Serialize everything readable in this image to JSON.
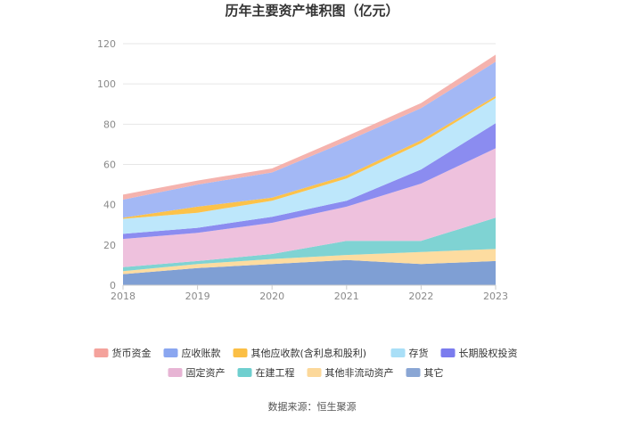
{
  "chart_data": {
    "type": "area",
    "stacked": true,
    "title": "历年主要资产堆积图（亿元）",
    "source": "数据来源：恒生聚源",
    "xlabel": "",
    "ylabel": "",
    "categories": [
      "2018",
      "2019",
      "2020",
      "2021",
      "2022",
      "2023"
    ],
    "ylim": [
      0,
      120
    ],
    "yticks": [
      0,
      20,
      40,
      60,
      80,
      100,
      120
    ],
    "grid": true,
    "legend_position": "bottom",
    "series": [
      {
        "name": "其它",
        "color": "#7f9fd4",
        "values": [
          5.5,
          8.5,
          10.5,
          12.5,
          10.5,
          12.0
        ]
      },
      {
        "name": "其他非流动资产",
        "color": "#fddca0",
        "values": [
          1.5,
          2.0,
          2.5,
          2.5,
          6.0,
          6.0
        ]
      },
      {
        "name": "在建工程",
        "color": "#7fd3d3",
        "values": [
          2.0,
          1.5,
          2.5,
          7.0,
          5.5,
          15.5
        ]
      },
      {
        "name": "固定资产",
        "color": "#eec1dd",
        "values": [
          14.0,
          14.0,
          15.5,
          17.0,
          28.5,
          34.5
        ]
      },
      {
        "name": "长期股权投资",
        "color": "#8b8cf0",
        "values": [
          2.5,
          2.5,
          3.0,
          3.0,
          7.0,
          12.5
        ]
      },
      {
        "name": "存货",
        "color": "#bde7fb",
        "values": [
          7.5,
          7.5,
          8.0,
          11.0,
          13.0,
          12.5
        ]
      },
      {
        "name": "其他应收款(含利息和股利)",
        "color": "#fcc24a",
        "values": [
          0.5,
          3.0,
          1.5,
          1.5,
          1.5,
          1.0
        ]
      },
      {
        "name": "应收账款",
        "color": "#a3b8f5",
        "values": [
          9.0,
          11.0,
          12.5,
          17.0,
          16.0,
          17.0
        ]
      },
      {
        "name": "货币资金",
        "color": "#f5b3ae",
        "values": [
          2.5,
          2.0,
          2.0,
          2.5,
          2.5,
          3.5
        ]
      }
    ]
  },
  "legend": [
    {
      "name": "货币资金",
      "color": "#f4a29c"
    },
    {
      "name": "应收账款",
      "color": "#8aa6f0"
    },
    {
      "name": "其他应收款(含利息和股利)",
      "color": "#fbbf45"
    },
    {
      "name": "存货",
      "color": "#a9dff7"
    },
    {
      "name": "长期股权投资",
      "color": "#7b7cee"
    },
    {
      "name": "固定资产",
      "color": "#e7b4d4"
    },
    {
      "name": "在建工程",
      "color": "#6fcfcf"
    },
    {
      "name": "其他非流动资产",
      "color": "#fcd89a"
    },
    {
      "name": "其它",
      "color": "#8aa6d4"
    }
  ]
}
